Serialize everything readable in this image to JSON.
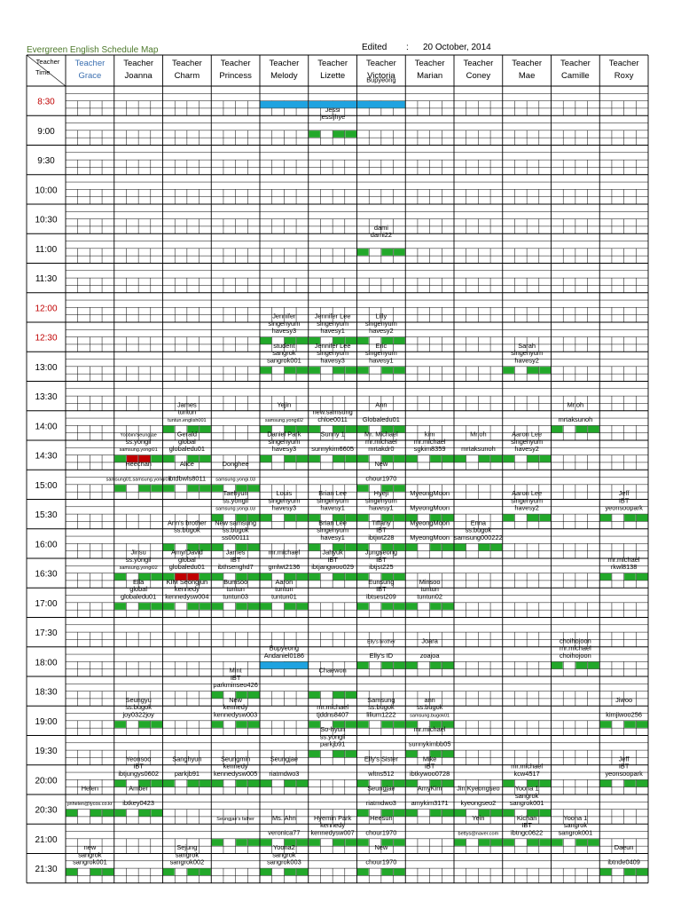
{
  "header": {
    "title": "Evergreen English Schedule Map",
    "edited_label": "Edited",
    "colon": ":",
    "date": "20 October, 2014"
  },
  "corner": {
    "teacher": "Teacher",
    "time": "Time"
  },
  "teacher_prefix": "Teacher",
  "teachers": [
    "Grace",
    "Joanna",
    "Charm",
    "Princess",
    "Melody",
    "Lizette",
    "Victoria",
    "Marian",
    "Coney",
    "Mae",
    "Camille",
    "Roxy"
  ],
  "times": [
    "8:30",
    "9:00",
    "9:30",
    "10:00",
    "10:30",
    "11:00",
    "11:30",
    "12:00",
    "12:30",
    "13:00",
    "13:30",
    "14:00",
    "14:30",
    "15:00",
    "15:30",
    "16:00",
    "16:30",
    "17:00",
    "17:30",
    "18:00",
    "18:30",
    "19:00",
    "19:30",
    "20:00",
    "20:30",
    "21:00",
    "21:30"
  ],
  "red_times": [
    "8:30",
    "12:00",
    "12:30"
  ],
  "colors": {
    "accent_green": "#22a82a",
    "accent_blue": "#1fa3e0",
    "accent_red": "#c00000",
    "grid": "#000000",
    "title_green": "#4e7a2c",
    "grace_blue": "#3a6fb0"
  },
  "entries": [
    {
      "t": 0,
      "c": 6,
      "lines": [
        "Bupyeong"
      ]
    },
    {
      "t": 1,
      "c": 5,
      "lines": [
        "Jessi",
        "jessijhye"
      ]
    },
    {
      "t": 5,
      "c": 6,
      "lines": [
        "dami",
        "dami22"
      ]
    },
    {
      "t": 8,
      "c": 4,
      "lines": [
        "Jennifer",
        "singenyum",
        "havesy3"
      ]
    },
    {
      "t": 8,
      "c": 5,
      "lines": [
        "Jennifer Lee",
        "singenyum",
        "havesy1"
      ]
    },
    {
      "t": 8,
      "c": 6,
      "lines": [
        "Lilly",
        "singenyum",
        "havesy2"
      ]
    },
    {
      "t": 9,
      "c": 4,
      "lines": [
        "student",
        "sangrok",
        "sangrok001"
      ]
    },
    {
      "t": 9,
      "c": 5,
      "lines": [
        "Jennifer Lee",
        "singenyum",
        "havesy3"
      ]
    },
    {
      "t": 9,
      "c": 6,
      "lines": [
        "Eric",
        "singenyum",
        "havesy1"
      ]
    },
    {
      "t": 9,
      "c": 9,
      "lines": [
        "Sarah",
        "singenyum",
        "havesy2"
      ]
    },
    {
      "t": 11,
      "c": 2,
      "lines": [
        "James",
        "tuntun",
        "tuntun.english001"
      ]
    },
    {
      "t": 11,
      "c": 4,
      "lines": [
        "Yejin",
        "",
        "samsung.yongi02"
      ]
    },
    {
      "t": 11,
      "c": 5,
      "lines": [
        "",
        "new.samsung",
        "chloe0011"
      ]
    },
    {
      "t": 11,
      "c": 6,
      "lines": [
        "Ann",
        "",
        "Globaledu01"
      ]
    },
    {
      "t": 11,
      "c": 10,
      "lines": [
        "Mr.oh",
        "",
        "mrtaksunoh"
      ]
    },
    {
      "t": 12,
      "c": 1,
      "lines": [
        "Yoobin/Seungjae",
        "ss.yongil",
        "samsung.yongi01"
      ]
    },
    {
      "t": 12,
      "c": 2,
      "lines": [
        "Gerald",
        "global",
        "globaledu01"
      ]
    },
    {
      "t": 12,
      "c": 4,
      "lines": [
        "Daniel Park",
        "singenyum",
        "havesy3"
      ]
    },
    {
      "t": 12,
      "c": 5,
      "lines": [
        "Sunny 1",
        "",
        "sunnykim6605"
      ]
    },
    {
      "t": 12,
      "c": 6,
      "lines": [
        "Mr. Michael",
        "mr.michael",
        "mrtakdr0"
      ]
    },
    {
      "t": 12,
      "c": 7,
      "lines": [
        "kim",
        "mr.michael",
        "sgkim8359"
      ]
    },
    {
      "t": 12,
      "c": 8,
      "lines": [
        "Mr.oh",
        "",
        "mrtaksunoh"
      ]
    },
    {
      "t": 12,
      "c": 9,
      "lines": [
        "Aaron Lee",
        "singenyum",
        "havesy2"
      ]
    },
    {
      "t": 13,
      "c": 1,
      "lines": [
        "Heechan",
        "",
        "samsung01.samsung.yongi01"
      ]
    },
    {
      "t": 13,
      "c": 2,
      "lines": [
        "Alice",
        "",
        "ibtdbwls8011"
      ]
    },
    {
      "t": 13,
      "c": 3,
      "lines": [
        "Donghee",
        "",
        "samsung.yongi.03"
      ]
    },
    {
      "t": 13,
      "c": 6,
      "lines": [
        "New",
        "",
        "chour1970"
      ]
    },
    {
      "t": 14,
      "c": 3,
      "lines": [
        "Taehyun",
        "ss.yongil",
        "samsung.yongi.03"
      ]
    },
    {
      "t": 14,
      "c": 4,
      "lines": [
        "Louis",
        "singenyum",
        "havesy3"
      ]
    },
    {
      "t": 14,
      "c": 5,
      "lines": [
        "Brian Lee",
        "singenyum",
        "havesy1"
      ]
    },
    {
      "t": 14,
      "c": 6,
      "lines": [
        "Hyeji",
        "singenyum",
        "havesy1"
      ]
    },
    {
      "t": 14,
      "c": 7,
      "lines": [
        "MyeongMoon",
        "",
        "MyeongMoon"
      ]
    },
    {
      "t": 14,
      "c": 9,
      "lines": [
        "Aaron Lee",
        "singenyum",
        "havesy2"
      ]
    },
    {
      "t": 14,
      "c": 11,
      "lines": [
        "Jeff",
        "IBT",
        "yeonsoopark"
      ]
    },
    {
      "t": 15,
      "c": 2,
      "lines": [
        "Ann's brother",
        "ss.bugok",
        ""
      ]
    },
    {
      "t": 15,
      "c": 3,
      "lines": [
        "New samsung",
        "ss.bugok",
        "ss000111"
      ]
    },
    {
      "t": 15,
      "c": 5,
      "lines": [
        "Brian Lee",
        "singenyum",
        "havesy1"
      ]
    },
    {
      "t": 15,
      "c": 6,
      "lines": [
        "Tiffany",
        "IBT",
        "ibtjwt228"
      ]
    },
    {
      "t": 15,
      "c": 7,
      "lines": [
        "MyeongMoon",
        "",
        "MyeongMoon"
      ]
    },
    {
      "t": 15,
      "c": 8,
      "lines": [
        "Enna",
        "ss.bugok",
        "samsung000222"
      ]
    },
    {
      "t": 16,
      "c": 1,
      "lines": [
        "Jinsu",
        "ss.yongil",
        "samsung.yongi02"
      ]
    },
    {
      "t": 16,
      "c": 2,
      "lines": [
        "Amy/David",
        "global",
        "globaledu01"
      ]
    },
    {
      "t": 16,
      "c": 3,
      "lines": [
        "James",
        "IBT",
        "ibthsenghd7"
      ]
    },
    {
      "t": 16,
      "c": 4,
      "lines": [
        "mr.michael",
        "",
        "gmlwt2136"
      ]
    },
    {
      "t": 16,
      "c": 5,
      "lines": [
        "Jahyuk",
        "IBT",
        "ibtjangwoo029"
      ]
    },
    {
      "t": 16,
      "c": 6,
      "lines": [
        "Jungseong",
        "IBT",
        "ibtjst225"
      ]
    },
    {
      "t": 16,
      "c": 11,
      "lines": [
        "",
        "mr.michael",
        "rkwl8138"
      ]
    },
    {
      "t": 17,
      "c": 1,
      "lines": [
        "Ella",
        "global",
        "globaledu01"
      ]
    },
    {
      "t": 17,
      "c": 2,
      "lines": [
        "KIM Seongjun",
        "kennedy",
        "kennedysw004"
      ]
    },
    {
      "t": 17,
      "c": 3,
      "lines": [
        "Bumsoo",
        "tuntun",
        "tuntun03"
      ]
    },
    {
      "t": 17,
      "c": 4,
      "lines": [
        "Aaron",
        "tuntun",
        "tuntun01"
      ]
    },
    {
      "t": 17,
      "c": 6,
      "lines": [
        "Eunsung",
        "IBT",
        "ibtsest209"
      ]
    },
    {
      "t": 17,
      "c": 7,
      "lines": [
        "Minsoo",
        "tuntun",
        "tuntun02"
      ]
    },
    {
      "t": 19,
      "c": 4,
      "lines": [
        "",
        "Bupyeong",
        "Andaniel0186"
      ]
    },
    {
      "t": 19,
      "c": 6,
      "lines": [
        "Elly's brother",
        "",
        "Elly's ID"
      ]
    },
    {
      "t": 19,
      "c": 7,
      "lines": [
        "Joara",
        "",
        "zoajoa"
      ]
    },
    {
      "t": 19,
      "c": 10,
      "lines": [
        "choihojoon",
        "mr.michael",
        "choihojoon"
      ]
    },
    {
      "t": 20,
      "c": 3,
      "lines": [
        "Mint",
        "IBT",
        "parkminseo426"
      ]
    },
    {
      "t": 20,
      "c": 5,
      "lines": [
        "Chaewon",
        "",
        ""
      ]
    },
    {
      "t": 21,
      "c": 1,
      "lines": [
        "Seungyu",
        "ss.bugok",
        "joy0322joy"
      ]
    },
    {
      "t": 21,
      "c": 3,
      "lines": [
        "New",
        "kennedy",
        "kennedysw003"
      ]
    },
    {
      "t": 21,
      "c": 5,
      "lines": [
        "",
        "mr.michael",
        "tjddns8407"
      ]
    },
    {
      "t": 21,
      "c": 6,
      "lines": [
        "Samsung",
        "ss.bugok",
        "lilium1222"
      ]
    },
    {
      "t": 21,
      "c": 7,
      "lines": [
        "ann",
        "ss.bugok",
        "samsung.bugok01"
      ]
    },
    {
      "t": 21,
      "c": 11,
      "lines": [
        "Jiwoo",
        "",
        "kimjiwoo256"
      ]
    },
    {
      "t": 22,
      "c": 5,
      "lines": [
        "So-hyun",
        "ss.yongil",
        "parkjb91"
      ]
    },
    {
      "t": 22,
      "c": 7,
      "lines": [
        "mr.michael",
        "",
        "sunnykimbb05"
      ]
    },
    {
      "t": 23,
      "c": 1,
      "lines": [
        "Yeonsoo",
        "IBT",
        "ibtjungys0602"
      ]
    },
    {
      "t": 23,
      "c": 2,
      "lines": [
        "Sanghyun",
        "",
        "parkjb91"
      ]
    },
    {
      "t": 23,
      "c": 3,
      "lines": [
        "Seungmin",
        "kennedy",
        "kennedysw005"
      ]
    },
    {
      "t": 23,
      "c": 4,
      "lines": [
        "Seungjae",
        "",
        "riatmdwo3"
      ]
    },
    {
      "t": 23,
      "c": 6,
      "lines": [
        "Elly's Sister",
        "",
        "wltns512"
      ]
    },
    {
      "t": 23,
      "c": 7,
      "lines": [
        "Mike",
        "IBT",
        "ibtkywoo0728"
      ]
    },
    {
      "t": 23,
      "c": 9,
      "lines": [
        "",
        "mr.michael",
        "kcw4517"
      ]
    },
    {
      "t": 23,
      "c": 11,
      "lines": [
        "Jeff",
        "IBT",
        "yeonsoopark"
      ]
    },
    {
      "t": 24,
      "c": 0,
      "lines": [
        "Helen",
        "",
        "jinhelen@lycos.co.kr"
      ]
    },
    {
      "t": 24,
      "c": 1,
      "lines": [
        "Amber",
        "",
        "ibtkey0423"
      ]
    },
    {
      "t": 24,
      "c": 6,
      "lines": [
        "Seungjae",
        "",
        "riatmdwo3"
      ]
    },
    {
      "t": 24,
      "c": 7,
      "lines": [
        "AmyKim",
        "",
        "amykim3171"
      ]
    },
    {
      "t": 24,
      "c": 8,
      "lines": [
        "Jin Kyeongseo",
        "",
        "kyeongseo2"
      ]
    },
    {
      "t": 24,
      "c": 9,
      "lines": [
        "Yoona 1",
        "sangrok",
        "sangrok001"
      ]
    },
    {
      "t": 25,
      "c": 3,
      "lines": [
        "Seungjae's father",
        "",
        ""
      ]
    },
    {
      "t": 25,
      "c": 4,
      "lines": [
        "Ms. Ahn",
        "",
        "veronica77"
      ]
    },
    {
      "t": 25,
      "c": 5,
      "lines": [
        "Hyemin Park",
        "kennedy",
        "kennedysw007"
      ]
    },
    {
      "t": 25,
      "c": 6,
      "lines": [
        "Heesun",
        "",
        "chour1970"
      ]
    },
    {
      "t": 25,
      "c": 8,
      "lines": [
        "Yein",
        "",
        "bettys@naver.com"
      ]
    },
    {
      "t": 25,
      "c": 9,
      "lines": [
        "Kichan",
        "IBT",
        "ibtngc0622"
      ]
    },
    {
      "t": 25,
      "c": 10,
      "lines": [
        "Yoona 1",
        "sangrok",
        "sangrok001"
      ]
    },
    {
      "t": 26,
      "c": 0,
      "lines": [
        "new",
        "sangrok",
        "sangrok001"
      ]
    },
    {
      "t": 26,
      "c": 2,
      "lines": [
        "Sejung",
        "sangrok",
        "sangrok002"
      ]
    },
    {
      "t": 26,
      "c": 4,
      "lines": [
        "Yoona2",
        "sangrok",
        "sangrok003"
      ]
    },
    {
      "t": 26,
      "c": 6,
      "lines": [
        "New",
        "",
        "chour1970"
      ]
    },
    {
      "t": 26,
      "c": 11,
      "lines": [
        "Daeun",
        "",
        "ibtnde0409"
      ]
    }
  ],
  "blue_cells": [
    {
      "t": 0,
      "c": 4
    },
    {
      "t": 0,
      "c": 5
    },
    {
      "t": 0,
      "c": 6
    },
    {
      "t": 19,
      "c": 4
    }
  ],
  "red_marks": [
    {
      "t": 12,
      "c": 1
    },
    {
      "t": 16,
      "c": 2
    }
  ]
}
